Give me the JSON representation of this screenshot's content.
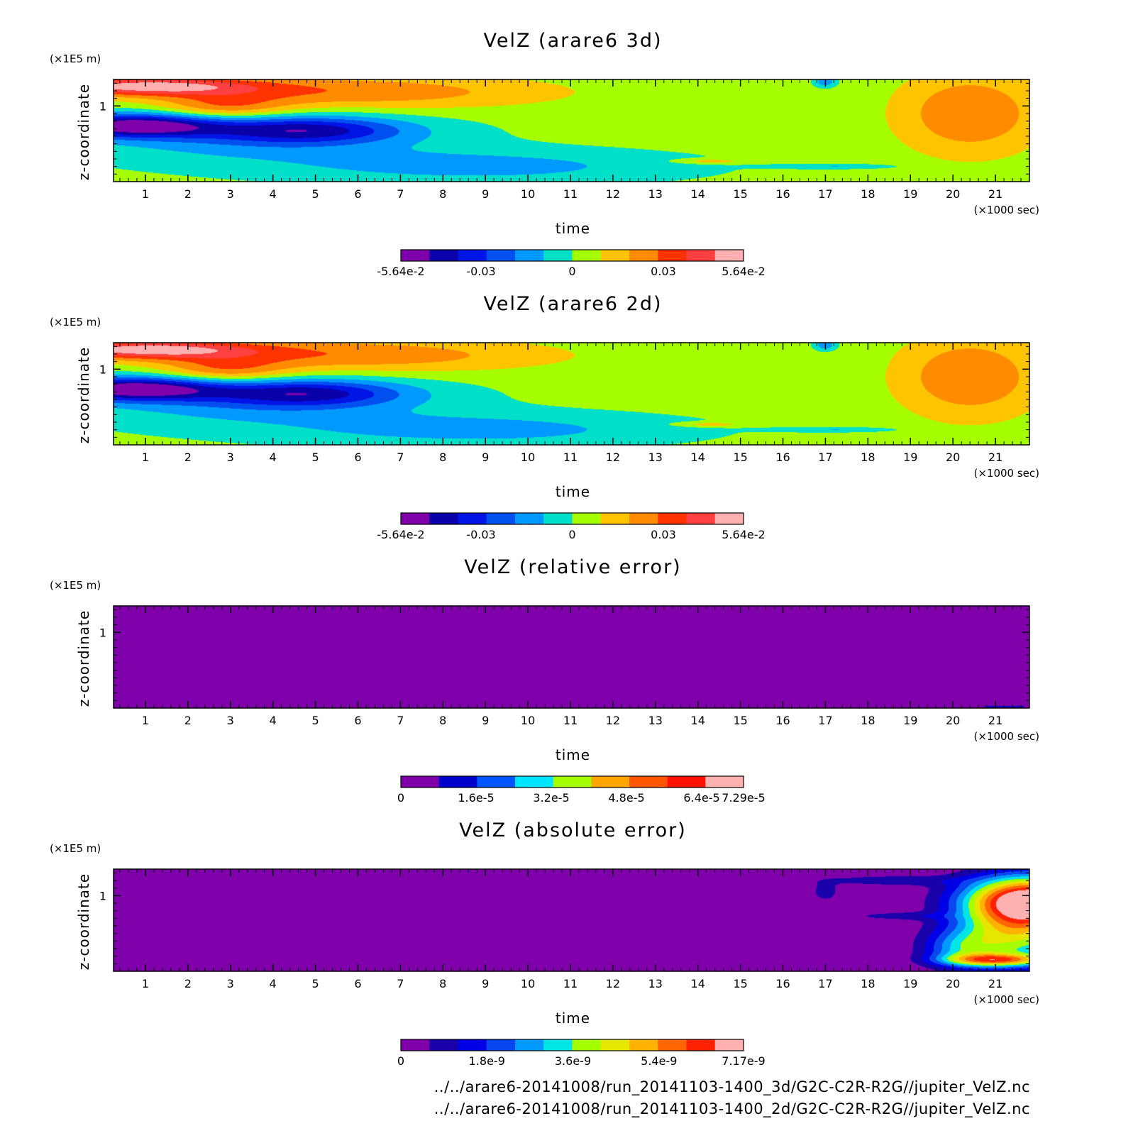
{
  "palette": {
    "error12": [
      "#7f00aa",
      "#1a00aa",
      "#0000e6",
      "#0a46f0",
      "#0099ff",
      "#00e5e5",
      "#a6ff00",
      "#e6e600",
      "#ffb300",
      "#ff6600",
      "#ff2200",
      "#ffb0b0"
    ],
    "vel12": [
      "#7f00aa",
      "#0a00aa",
      "#0014e6",
      "#0050f0",
      "#0099ff",
      "#00e0c8",
      "#a6ff00",
      "#ffc400",
      "#ff8c00",
      "#ff3300",
      "#ff4040",
      "#ffb0b0"
    ],
    "rel9": [
      "#7f00aa",
      "#0000cc",
      "#0055ff",
      "#00e5ff",
      "#a6ff00",
      "#ffa500",
      "#ff5500",
      "#ff1100",
      "#ffb0b0"
    ]
  },
  "chart_data": [
    {
      "type": "heatmap",
      "title": "VelZ (arare6 3d)",
      "xlabel": "time",
      "ylabel": "z-coordinate",
      "x_unit": "(×1000 sec)",
      "y_unit": "(×1E5 m)",
      "xlim": [
        0.25,
        21.8
      ],
      "ylim": [
        0,
        1.35
      ],
      "x_ticks": [
        "1",
        "2",
        "3",
        "4",
        "5",
        "6",
        "7",
        "8",
        "9",
        "10",
        "11",
        "12",
        "13",
        "14",
        "15",
        "16",
        "17",
        "18",
        "19",
        "20",
        "21"
      ],
      "y_ticks": [
        "1"
      ],
      "colorbar": {
        "ticks": [
          "-5.64e-2",
          "-0.03",
          "0",
          "0.03",
          "5.64e-2"
        ],
        "tick_values": [
          -0.0564,
          -0.03,
          0,
          0.03,
          0.0564
        ],
        "range": [
          -0.0564,
          0.0564
        ],
        "colors": [
          "#7f00aa",
          "#0a00aa",
          "#0014e6",
          "#0050f0",
          "#0099ff",
          "#00e0c8",
          "#a6ff00",
          "#ffc400",
          "#ff8c00",
          "#ff3300",
          "#ff4040",
          "#ffb0b0"
        ]
      },
      "background": 0.003,
      "features": [
        {
          "x": 0.9,
          "y": 1.26,
          "sx": 2.6,
          "sy": 0.12,
          "a": 0.044
        },
        {
          "x": 2.9,
          "y": 0.98,
          "sx": 1.5,
          "sy": 0.18,
          "a": 0.022
        },
        {
          "x": 5.6,
          "y": 1.18,
          "sx": 4.8,
          "sy": 0.23,
          "a": 0.024
        },
        {
          "x": 20.4,
          "y": 0.9,
          "sx": 1.7,
          "sy": 0.55,
          "a": 0.025
        },
        {
          "x": 0.7,
          "y": 0.74,
          "sx": 2.0,
          "sy": 0.15,
          "a": -0.054
        },
        {
          "x": 4.8,
          "y": 0.68,
          "sx": 2.2,
          "sy": 0.17,
          "a": -0.034
        },
        {
          "x": 3.5,
          "y": 0.6,
          "sx": 4.3,
          "sy": 0.36,
          "a": -0.018
        },
        {
          "x": 9.0,
          "y": 0.2,
          "sx": 4.6,
          "sy": 0.22,
          "a": -0.016
        },
        {
          "x": 17.0,
          "y": 1.32,
          "sx": 0.25,
          "sy": 0.07,
          "a": -0.02
        },
        {
          "x": 17.3,
          "y": 0.2,
          "sx": 1.4,
          "sy": 0.03,
          "a": -0.012
        },
        {
          "x": 14.3,
          "y": 0.27,
          "sx": 0.8,
          "sy": 0.03,
          "a": 0.014
        }
      ]
    },
    {
      "type": "heatmap",
      "title": "VelZ (arare6 2d)",
      "xlabel": "time",
      "ylabel": "z-coordinate",
      "x_unit": "(×1000 sec)",
      "y_unit": "(×1E5 m)",
      "xlim": [
        0.25,
        21.8
      ],
      "ylim": [
        0,
        1.35
      ],
      "x_ticks": [
        "1",
        "2",
        "3",
        "4",
        "5",
        "6",
        "7",
        "8",
        "9",
        "10",
        "11",
        "12",
        "13",
        "14",
        "15",
        "16",
        "17",
        "18",
        "19",
        "20",
        "21"
      ],
      "y_ticks": [
        "1"
      ],
      "colorbar": {
        "ticks": [
          "-5.64e-2",
          "-0.03",
          "0",
          "0.03",
          "5.64e-2"
        ],
        "tick_values": [
          -0.0564,
          -0.03,
          0,
          0.03,
          0.0564
        ],
        "range": [
          -0.0564,
          0.0564
        ],
        "colors": [
          "#7f00aa",
          "#0a00aa",
          "#0014e6",
          "#0050f0",
          "#0099ff",
          "#00e0c8",
          "#a6ff00",
          "#ffc400",
          "#ff8c00",
          "#ff3300",
          "#ff4040",
          "#ffb0b0"
        ]
      },
      "background": 0.003,
      "features": [
        {
          "x": 0.9,
          "y": 1.26,
          "sx": 2.6,
          "sy": 0.12,
          "a": 0.044
        },
        {
          "x": 2.9,
          "y": 0.98,
          "sx": 1.5,
          "sy": 0.18,
          "a": 0.022
        },
        {
          "x": 5.6,
          "y": 1.18,
          "sx": 4.8,
          "sy": 0.23,
          "a": 0.024
        },
        {
          "x": 20.4,
          "y": 0.9,
          "sx": 1.7,
          "sy": 0.55,
          "a": 0.025
        },
        {
          "x": 0.7,
          "y": 0.74,
          "sx": 2.0,
          "sy": 0.15,
          "a": -0.054
        },
        {
          "x": 4.8,
          "y": 0.68,
          "sx": 2.2,
          "sy": 0.17,
          "a": -0.034
        },
        {
          "x": 3.5,
          "y": 0.6,
          "sx": 4.3,
          "sy": 0.36,
          "a": -0.018
        },
        {
          "x": 9.0,
          "y": 0.2,
          "sx": 4.6,
          "sy": 0.22,
          "a": -0.016
        },
        {
          "x": 17.0,
          "y": 1.32,
          "sx": 0.25,
          "sy": 0.07,
          "a": -0.02
        },
        {
          "x": 17.3,
          "y": 0.2,
          "sx": 1.4,
          "sy": 0.03,
          "a": -0.012
        },
        {
          "x": 14.3,
          "y": 0.27,
          "sx": 0.8,
          "sy": 0.03,
          "a": 0.014
        }
      ]
    },
    {
      "type": "heatmap",
      "title": "VelZ (relative error)",
      "xlabel": "time",
      "ylabel": "z-coordinate",
      "x_unit": "(×1000 sec)",
      "y_unit": "(×1E5 m)",
      "xlim": [
        0.25,
        21.8
      ],
      "ylim": [
        0,
        1.35
      ],
      "x_ticks": [
        "1",
        "2",
        "3",
        "4",
        "5",
        "6",
        "7",
        "8",
        "9",
        "10",
        "11",
        "12",
        "13",
        "14",
        "15",
        "16",
        "17",
        "18",
        "19",
        "20",
        "21"
      ],
      "y_ticks": [
        "1"
      ],
      "colorbar": {
        "ticks": [
          "0",
          "1.6e-5",
          "3.2e-5",
          "4.8e-5",
          "6.4e-5",
          "7.29e-5"
        ],
        "tick_values": [
          0,
          1.6e-05,
          3.2e-05,
          4.8e-05,
          6.4e-05,
          7.29e-05
        ],
        "range": [
          0,
          7.29e-05
        ],
        "colors": [
          "#7f00aa",
          "#0000cc",
          "#0055ff",
          "#00e5ff",
          "#a6ff00",
          "#ffa500",
          "#ff5500",
          "#ff1100",
          "#ffb0b0"
        ]
      },
      "background": 0,
      "features": [
        {
          "x": 21.2,
          "y": 0.02,
          "sx": 0.8,
          "sy": 0.02,
          "a": 1.2e-05
        }
      ]
    },
    {
      "type": "heatmap",
      "title": "VelZ (absolute error)",
      "xlabel": "time",
      "ylabel": "z-coordinate",
      "x_unit": "(×1000 sec)",
      "y_unit": "(×1E5 m)",
      "xlim": [
        0.25,
        21.8
      ],
      "ylim": [
        0,
        1.35
      ],
      "x_ticks": [
        "1",
        "2",
        "3",
        "4",
        "5",
        "6",
        "7",
        "8",
        "9",
        "10",
        "11",
        "12",
        "13",
        "14",
        "15",
        "16",
        "17",
        "18",
        "19",
        "20",
        "21"
      ],
      "y_ticks": [
        "1"
      ],
      "colorbar": {
        "ticks": [
          "0",
          "1.8e-9",
          "3.6e-9",
          "5.4e-9",
          "7.17e-9"
        ],
        "tick_values": [
          0,
          1.8e-09,
          3.6e-09,
          5.4e-09,
          7.17e-09
        ],
        "range": [
          0,
          7.17e-09
        ],
        "colors": [
          "#7f00aa",
          "#1a00aa",
          "#0000e6",
          "#0a46f0",
          "#0099ff",
          "#00e5e5",
          "#a6ff00",
          "#e6e600",
          "#ffb300",
          "#ff6600",
          "#ff2200",
          "#ffb0b0"
        ]
      },
      "background": 0,
      "features": [
        {
          "x": 18.5,
          "y": 1.2,
          "sx": 1.6,
          "sy": 0.07,
          "a": 1e-09
        },
        {
          "x": 17.0,
          "y": 1.05,
          "sx": 0.35,
          "sy": 0.14,
          "a": 9e-10
        },
        {
          "x": 18.7,
          "y": 0.73,
          "sx": 1.1,
          "sy": 0.05,
          "a": 9e-10
        },
        {
          "x": 21.8,
          "y": 0.95,
          "sx": 1.5,
          "sy": 0.32,
          "a": 6.8e-09
        },
        {
          "x": 21.5,
          "y": 0.5,
          "sx": 1.4,
          "sy": 0.45,
          "a": 3.8e-09
        },
        {
          "x": 21.0,
          "y": 0.15,
          "sx": 1.2,
          "sy": 0.08,
          "a": 4e-09
        },
        {
          "x": 20.2,
          "y": 0.3,
          "sx": 0.9,
          "sy": 0.25,
          "a": 2.2e-09
        }
      ]
    }
  ],
  "footer": {
    "line1": "../../arare6-20141008/run_20141103-1400_3d/G2C-C2R-R2G//jupiter_VelZ.nc",
    "line2": "../../arare6-20141008/run_20141103-1400_2d/G2C-C2R-R2G//jupiter_VelZ.nc"
  }
}
